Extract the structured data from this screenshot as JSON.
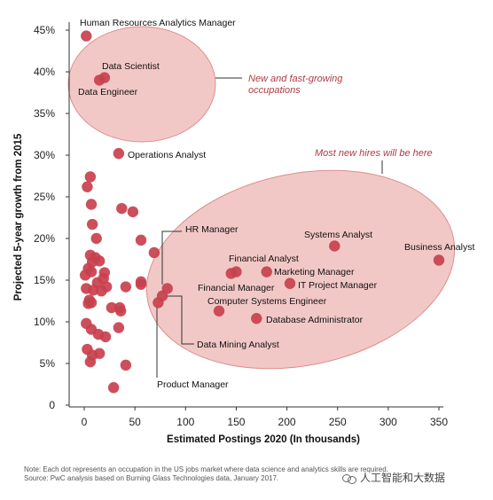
{
  "chart_data": {
    "type": "scatter",
    "title": "",
    "xlabel": "Estimated Postings 2020 (In thousands)",
    "ylabel": "Projected 5-year growth from 2015",
    "xlim": [
      0,
      350
    ],
    "ylim": [
      0,
      45
    ],
    "xticks": [
      "0",
      "50",
      "100",
      "150",
      "200",
      "250",
      "300",
      "350"
    ],
    "yticks": [
      "0",
      "5%",
      "10%",
      "15%",
      "20%",
      "25%",
      "30%",
      "35%",
      "40%",
      "45%"
    ],
    "grid": false,
    "point_color": "#c8404d",
    "callout_color": "#b03a44",
    "ellipse_fill": "#f2c8c6",
    "points": [
      {
        "x": 2,
        "y": 44.3,
        "label": "Human Resources Analytics Manager"
      },
      {
        "x": 20,
        "y": 39.3,
        "label": "Data Scientist"
      },
      {
        "x": 15,
        "y": 39.0,
        "label": "Data Engineer"
      },
      {
        "x": 34,
        "y": 30.2,
        "label": "Operations Analyst"
      },
      {
        "x": 247,
        "y": 19.1,
        "label": "Systems Analyst"
      },
      {
        "x": 350,
        "y": 17.4,
        "label": "Business Analyst"
      },
      {
        "x": 150,
        "y": 16.0,
        "label": "Financial Analyst"
      },
      {
        "x": 180,
        "y": 16.0,
        "label": "Marketing Manager"
      },
      {
        "x": 145,
        "y": 15.8,
        "label": "Financial Manager"
      },
      {
        "x": 203,
        "y": 14.6,
        "label": "IT Project Manager"
      },
      {
        "x": 133,
        "y": 11.3,
        "label": "Computer Systems Engineer"
      },
      {
        "x": 170,
        "y": 10.4,
        "label": "Database Administrator"
      },
      {
        "x": 82,
        "y": 14.0,
        "label": "HR Manager"
      },
      {
        "x": 77,
        "y": 13.1,
        "label": "Data Mining Analyst"
      },
      {
        "x": 73,
        "y": 12.3,
        "label": "Product Manager"
      },
      {
        "x": 6,
        "y": 27.4,
        "label": ""
      },
      {
        "x": 3,
        "y": 26.2,
        "label": ""
      },
      {
        "x": 7,
        "y": 24.1,
        "label": ""
      },
      {
        "x": 37,
        "y": 23.6,
        "label": ""
      },
      {
        "x": 48,
        "y": 23.2,
        "label": ""
      },
      {
        "x": 8,
        "y": 21.7,
        "label": ""
      },
      {
        "x": 12,
        "y": 20.0,
        "label": ""
      },
      {
        "x": 56,
        "y": 19.8,
        "label": ""
      },
      {
        "x": 69,
        "y": 18.3,
        "label": ""
      },
      {
        "x": 6,
        "y": 18.0,
        "label": ""
      },
      {
        "x": 11,
        "y": 17.7,
        "label": ""
      },
      {
        "x": 15,
        "y": 17.3,
        "label": ""
      },
      {
        "x": 8,
        "y": 17.2,
        "label": ""
      },
      {
        "x": 4,
        "y": 16.4,
        "label": ""
      },
      {
        "x": 7,
        "y": 16.0,
        "label": ""
      },
      {
        "x": 20,
        "y": 15.9,
        "label": ""
      },
      {
        "x": 1,
        "y": 15.6,
        "label": ""
      },
      {
        "x": 19,
        "y": 15.2,
        "label": ""
      },
      {
        "x": 13,
        "y": 14.7,
        "label": ""
      },
      {
        "x": 56,
        "y": 14.8,
        "label": ""
      },
      {
        "x": 56,
        "y": 14.5,
        "label": ""
      },
      {
        "x": 41,
        "y": 14.2,
        "label": ""
      },
      {
        "x": 22,
        "y": 14.2,
        "label": ""
      },
      {
        "x": 2,
        "y": 14.0,
        "label": ""
      },
      {
        "x": 9,
        "y": 13.8,
        "label": ""
      },
      {
        "x": 17,
        "y": 13.7,
        "label": ""
      },
      {
        "x": 5,
        "y": 12.6,
        "label": ""
      },
      {
        "x": 4,
        "y": 12.2,
        "label": ""
      },
      {
        "x": 7,
        "y": 12.3,
        "label": ""
      },
      {
        "x": 27,
        "y": 11.7,
        "label": ""
      },
      {
        "x": 35,
        "y": 11.7,
        "label": ""
      },
      {
        "x": 36,
        "y": 11.3,
        "label": ""
      },
      {
        "x": 2,
        "y": 9.8,
        "label": ""
      },
      {
        "x": 34,
        "y": 9.3,
        "label": ""
      },
      {
        "x": 7,
        "y": 9.1,
        "label": ""
      },
      {
        "x": 14,
        "y": 8.5,
        "label": ""
      },
      {
        "x": 21,
        "y": 8.2,
        "label": ""
      },
      {
        "x": 3,
        "y": 6.7,
        "label": ""
      },
      {
        "x": 8,
        "y": 6.0,
        "label": ""
      },
      {
        "x": 15,
        "y": 6.2,
        "label": ""
      },
      {
        "x": 6,
        "y": 5.2,
        "label": ""
      },
      {
        "x": 41,
        "y": 4.8,
        "label": ""
      },
      {
        "x": 29,
        "y": 2.1,
        "label": ""
      }
    ],
    "annotations": [
      "New and fast-growing occupations",
      "Most new hires will be here"
    ]
  },
  "annotations": {
    "callout_top_line1": "New and fast-growing",
    "callout_top_line2": "occupations",
    "callout_bottom": "Most new hires will be here"
  },
  "footer": {
    "note": "Note: Each dot represents an occupation in the US jobs market where data science and analytics skills are required.",
    "source": "Source: PwC analysis based on Burning Glass Technologies data, January 2017."
  },
  "watermark": {
    "text": "人工智能和大数据"
  }
}
